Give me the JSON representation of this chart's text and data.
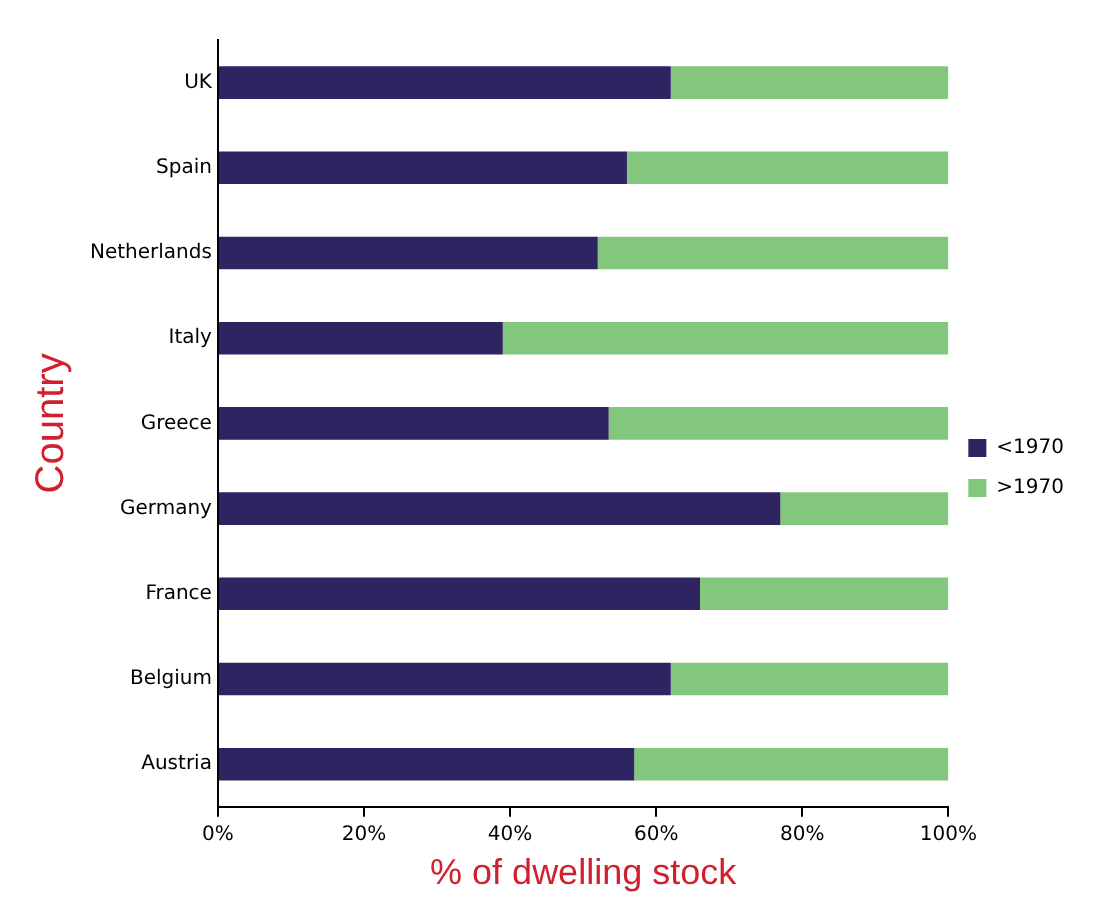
{
  "chart_data": {
    "type": "bar",
    "orientation": "horizontal",
    "stacked": true,
    "xlabel": "% of dwelling stock",
    "ylabel": "Country",
    "categories": [
      "UK",
      "Spain",
      "Netherlands",
      "Italy",
      "Greece",
      "Germany",
      "France",
      "Belgium",
      "Austria"
    ],
    "series": [
      {
        "name": "<1970",
        "color": "#2e2462",
        "values": [
          62,
          56,
          52,
          39,
          53.5,
          77,
          66,
          62,
          57
        ]
      },
      {
        "name": ">1970",
        "color": "#82c77c",
        "values": [
          38,
          44,
          48,
          61,
          46.5,
          23,
          34,
          38,
          43
        ]
      }
    ],
    "xlim": [
      0,
      100
    ],
    "xticks": [
      {
        "value": 0,
        "label": "0%"
      },
      {
        "value": 20,
        "label": "20%"
      },
      {
        "value": 40,
        "label": "40%"
      },
      {
        "value": 60,
        "label": "60%"
      },
      {
        "value": 80,
        "label": "80%"
      },
      {
        "value": 100,
        "label": "100%"
      }
    ],
    "grid": false,
    "legend": "right"
  }
}
